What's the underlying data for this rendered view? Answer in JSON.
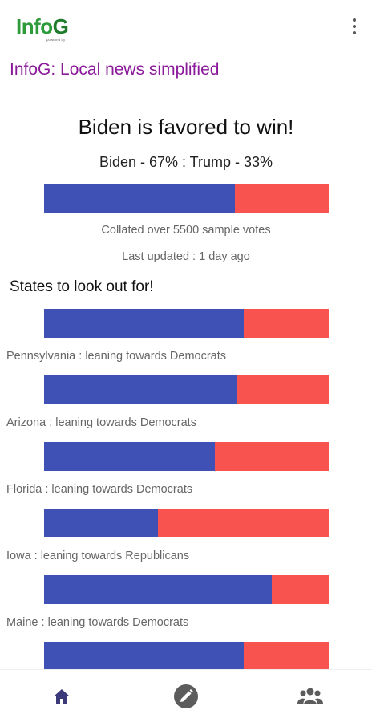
{
  "header": {
    "logo_main": "Info",
    "logo_accent": "G",
    "logo_sub": "powered by",
    "menu_icon": "more-vert-icon"
  },
  "tagline": "InfoG: Local news simplified",
  "overall": {
    "headline": "Biden is favored to win!",
    "summary": "Biden - 67% : Trump - 33%",
    "dem_share": 67,
    "rep_share": 33,
    "collated": "Collated over 5500 sample votes",
    "updated": "Last updated : 1 day ago"
  },
  "states_title": "States to look out for!",
  "states": [
    {
      "label": "Pennsylvania : leaning towards Democrats",
      "dem_share": 70
    },
    {
      "label": "Arizona : leaning towards Democrats",
      "dem_share": 68
    },
    {
      "label": "Florida : leaning towards Democrats",
      "dem_share": 60
    },
    {
      "label": "Iowa : leaning towards Republicans",
      "dem_share": 40
    },
    {
      "label": "Maine : leaning towards Democrats",
      "dem_share": 80
    },
    {
      "label": "",
      "dem_share": 70
    }
  ],
  "colors": {
    "democrat": "#3f51b5",
    "republican": "#f95350",
    "tagline": "#8b1a9b",
    "logo": "#2e9b3b"
  },
  "bottom_nav": [
    {
      "name": "home-icon"
    },
    {
      "name": "edit-icon"
    },
    {
      "name": "group-icon"
    }
  ]
}
